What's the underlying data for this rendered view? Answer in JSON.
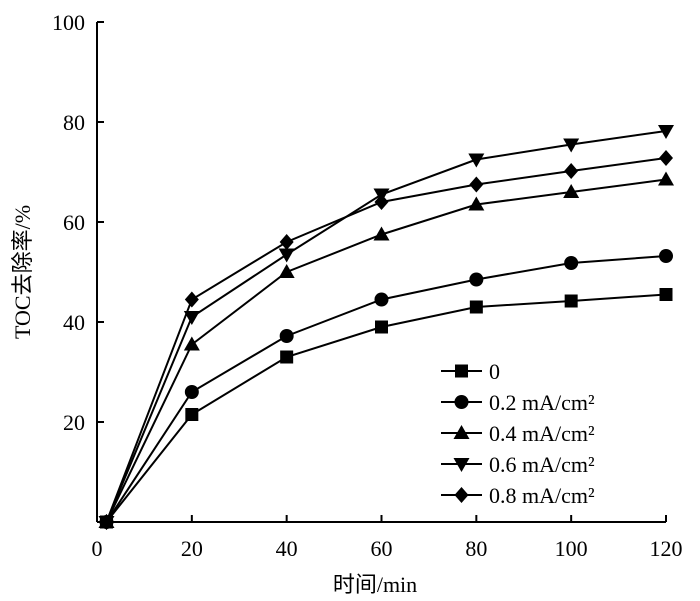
{
  "chart_data": {
    "type": "line",
    "title": "",
    "xlabel": "时间/min",
    "ylabel": "TOC去除率/%",
    "xlim": [
      0,
      120
    ],
    "ylim": [
      0,
      100
    ],
    "x_ticks": [
      0,
      20,
      40,
      60,
      80,
      100,
      120
    ],
    "y_ticks": [
      20,
      40,
      60,
      80,
      100
    ],
    "grid": false,
    "legend_position": "bottom-right",
    "series": [
      {
        "name": "0",
        "marker": "square",
        "x": [
          2,
          20,
          40,
          60,
          80,
          100,
          120
        ],
        "y": [
          0,
          21.5,
          33,
          39,
          43,
          44.2,
          45.5
        ]
      },
      {
        "name": "0.2 mA/cm²",
        "marker": "circle",
        "x": [
          2,
          20,
          40,
          60,
          80,
          100,
          120
        ],
        "y": [
          0,
          26,
          37.2,
          44.5,
          48.5,
          51.8,
          53.2
        ]
      },
      {
        "name": "0.4 mA/cm²",
        "marker": "triangle-up",
        "x": [
          2,
          20,
          40,
          60,
          80,
          100,
          120
        ],
        "y": [
          0,
          35.5,
          50,
          57.5,
          63.5,
          66,
          68.5
        ]
      },
      {
        "name": "0.6 mA/cm²",
        "marker": "triangle-down",
        "x": [
          2,
          20,
          40,
          60,
          80,
          100,
          120
        ],
        "y": [
          0,
          41,
          53.5,
          65.5,
          72.5,
          75.5,
          78.2
        ]
      },
      {
        "name": "0.8 mA/cm²",
        "marker": "diamond",
        "x": [
          2,
          20,
          40,
          60,
          80,
          100,
          120
        ],
        "y": [
          0,
          44.5,
          56,
          64,
          67.5,
          70.2,
          72.8
        ]
      }
    ]
  }
}
